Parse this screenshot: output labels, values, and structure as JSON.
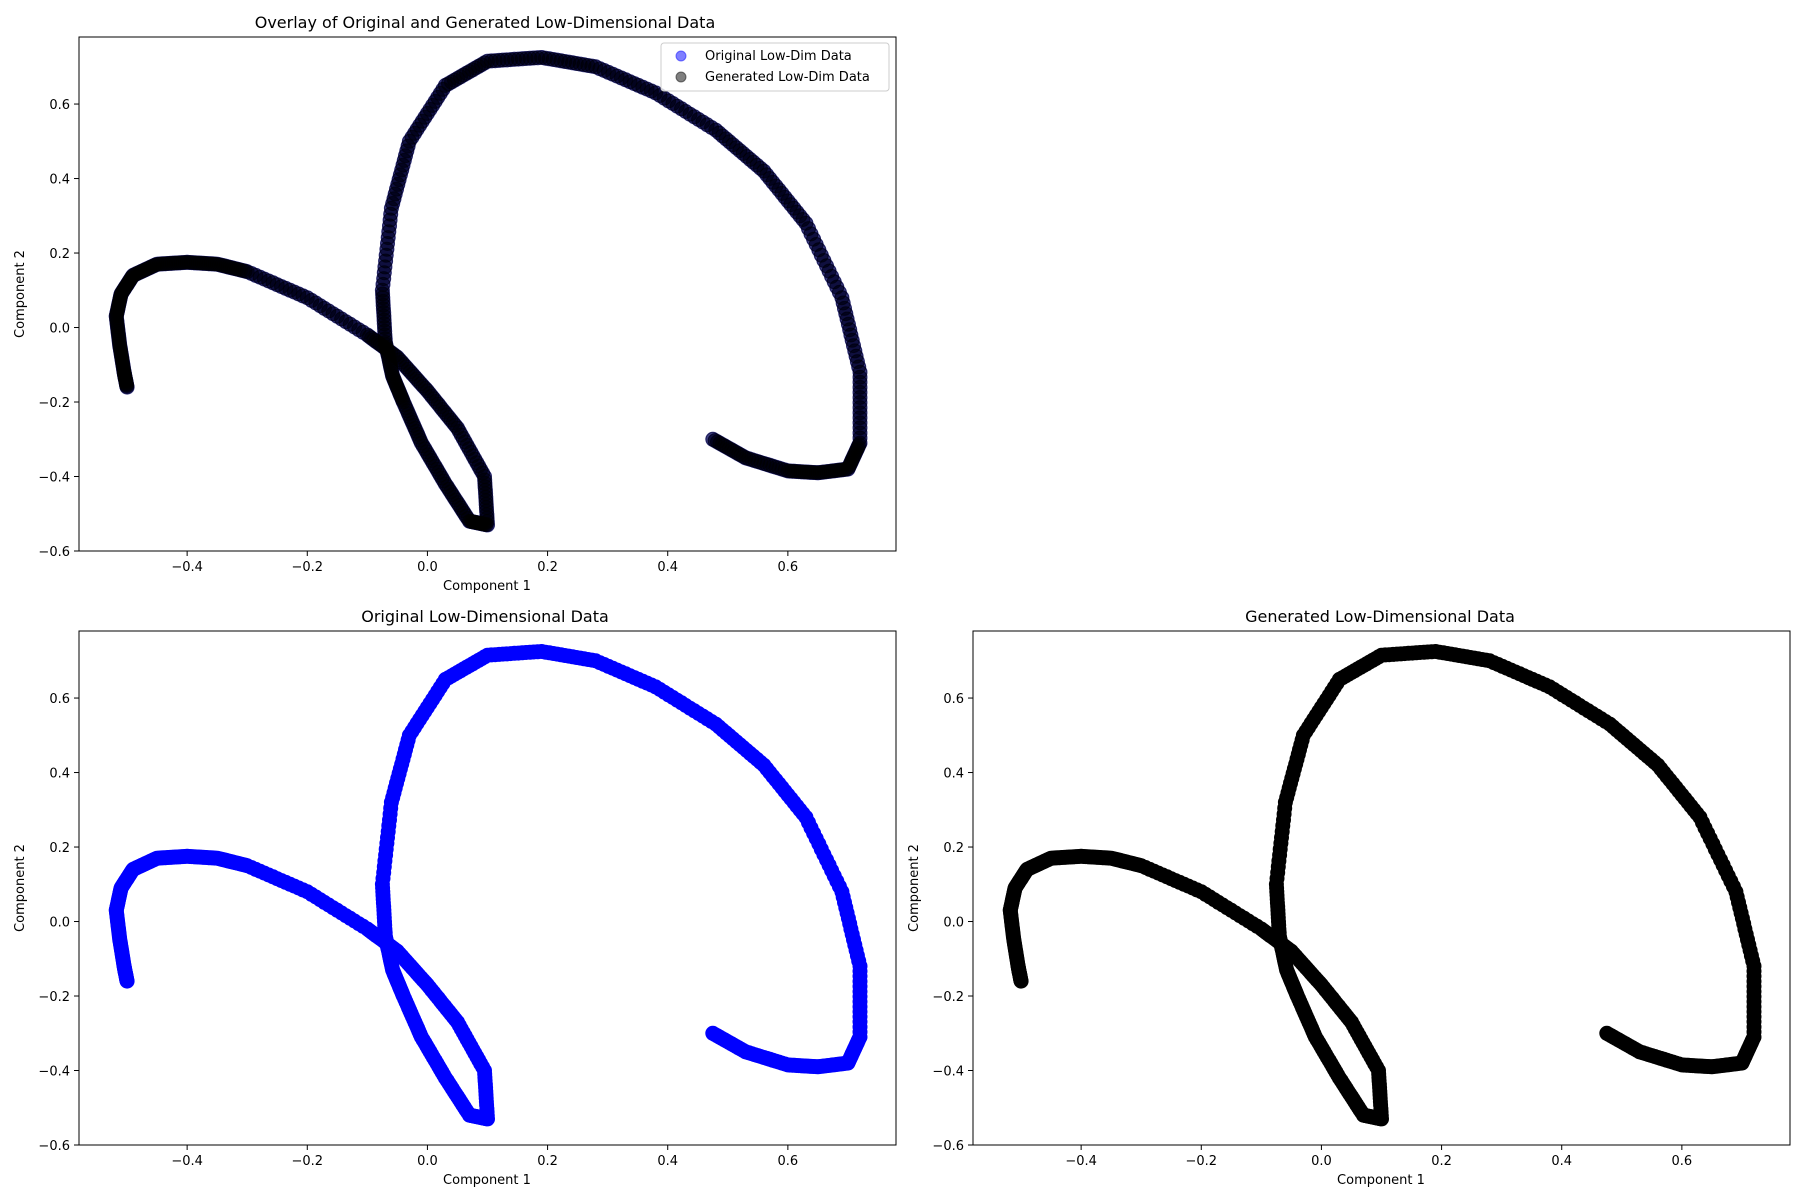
{
  "figure": {
    "background": "#ffffff"
  },
  "chart_data": [
    {
      "type": "scatter",
      "id": "overlay",
      "title": "Overlay of Original and Generated Low-Dimensional Data",
      "xlabel": "Component 1",
      "ylabel": "Component 2",
      "xlim": [
        -0.58,
        0.78
      ],
      "ylim": [
        -0.6,
        0.78
      ],
      "xticks": [
        -0.4,
        -0.2,
        0.0,
        0.2,
        0.4,
        0.6
      ],
      "xtick_labels": [
        "−0.4",
        "−0.2",
        "0.0",
        "0.2",
        "0.4",
        "0.6"
      ],
      "yticks": [
        -0.6,
        -0.4,
        -0.2,
        0.0,
        0.2,
        0.4,
        0.6
      ],
      "ytick_labels": [
        "−0.6",
        "−0.4",
        "−0.2",
        "0.0",
        "0.2",
        "0.4",
        "0.6"
      ],
      "grid": false,
      "legend": {
        "position": "upper right",
        "entries": [
          {
            "label": "Original Low-Dim Data",
            "color": "#0000ff",
            "alpha": 0.5
          },
          {
            "label": "Generated Low-Dim Data",
            "color": "#000000",
            "alpha": 0.5
          }
        ]
      },
      "series": [
        {
          "name": "Original Low-Dim Data",
          "color": "#0000ff",
          "alpha": 0.5,
          "x": [
            -0.5,
            -0.505,
            -0.512,
            -0.518,
            -0.51,
            -0.49,
            -0.45,
            -0.4,
            -0.35,
            -0.3,
            -0.2,
            -0.1,
            -0.05,
            0.0,
            0.05,
            0.095,
            0.1,
            0.07,
            0.03,
            -0.01,
            -0.04,
            -0.058,
            -0.07,
            -0.075,
            -0.06,
            -0.03,
            0.03,
            0.1,
            0.19,
            0.28,
            0.38,
            0.48,
            0.56,
            0.63,
            0.69,
            0.72,
            0.72,
            0.7,
            0.65,
            0.6,
            0.53,
            0.475
          ],
          "y": [
            -0.16,
            -0.12,
            -0.05,
            0.03,
            0.09,
            0.14,
            0.17,
            0.175,
            0.17,
            0.15,
            0.08,
            -0.02,
            -0.08,
            -0.17,
            -0.27,
            -0.4,
            -0.53,
            -0.52,
            -0.42,
            -0.31,
            -0.2,
            -0.13,
            -0.04,
            0.1,
            0.32,
            0.5,
            0.65,
            0.715,
            0.725,
            0.7,
            0.63,
            0.53,
            0.42,
            0.28,
            0.08,
            -0.12,
            -0.31,
            -0.38,
            -0.39,
            -0.385,
            -0.35,
            -0.3
          ]
        },
        {
          "name": "Generated Low-Dim Data",
          "color": "#000000",
          "alpha": 0.5,
          "x": [
            -0.5,
            -0.505,
            -0.512,
            -0.518,
            -0.51,
            -0.49,
            -0.45,
            -0.4,
            -0.35,
            -0.3,
            -0.2,
            -0.1,
            -0.05,
            0.0,
            0.05,
            0.095,
            0.1,
            0.07,
            0.03,
            -0.01,
            -0.04,
            -0.058,
            -0.07,
            -0.075,
            -0.06,
            -0.03,
            0.03,
            0.1,
            0.19,
            0.28,
            0.38,
            0.48,
            0.56,
            0.63,
            0.69,
            0.72,
            0.72,
            0.7,
            0.65,
            0.6,
            0.53,
            0.475
          ],
          "y": [
            -0.16,
            -0.12,
            -0.05,
            0.03,
            0.09,
            0.14,
            0.17,
            0.175,
            0.17,
            0.15,
            0.08,
            -0.02,
            -0.08,
            -0.17,
            -0.27,
            -0.4,
            -0.53,
            -0.52,
            -0.42,
            -0.31,
            -0.2,
            -0.13,
            -0.04,
            0.1,
            0.32,
            0.5,
            0.65,
            0.715,
            0.725,
            0.7,
            0.63,
            0.53,
            0.42,
            0.28,
            0.08,
            -0.12,
            -0.31,
            -0.38,
            -0.39,
            -0.385,
            -0.35,
            -0.3
          ]
        }
      ]
    },
    {
      "type": "scatter",
      "id": "original",
      "title": "Original Low-Dimensional Data",
      "xlabel": "Component 1",
      "ylabel": "Component 2",
      "xlim": [
        -0.58,
        0.78
      ],
      "ylim": [
        -0.6,
        0.78
      ],
      "xticks": [
        -0.4,
        -0.2,
        0.0,
        0.2,
        0.4,
        0.6
      ],
      "xtick_labels": [
        "−0.4",
        "−0.2",
        "0.0",
        "0.2",
        "0.4",
        "0.6"
      ],
      "yticks": [
        -0.6,
        -0.4,
        -0.2,
        0.0,
        0.2,
        0.4,
        0.6
      ],
      "ytick_labels": [
        "−0.6",
        "−0.4",
        "−0.2",
        "0.0",
        "0.2",
        "0.4",
        "0.6"
      ],
      "grid": false,
      "series": [
        {
          "color": "#0000ff",
          "alpha": 1.0,
          "x": [
            -0.5,
            -0.505,
            -0.512,
            -0.518,
            -0.51,
            -0.49,
            -0.45,
            -0.4,
            -0.35,
            -0.3,
            -0.2,
            -0.1,
            -0.05,
            0.0,
            0.05,
            0.095,
            0.1,
            0.07,
            0.03,
            -0.01,
            -0.04,
            -0.058,
            -0.07,
            -0.075,
            -0.06,
            -0.03,
            0.03,
            0.1,
            0.19,
            0.28,
            0.38,
            0.48,
            0.56,
            0.63,
            0.69,
            0.72,
            0.72,
            0.7,
            0.65,
            0.6,
            0.53,
            0.475
          ],
          "y": [
            -0.16,
            -0.12,
            -0.05,
            0.03,
            0.09,
            0.14,
            0.17,
            0.175,
            0.17,
            0.15,
            0.08,
            -0.02,
            -0.08,
            -0.17,
            -0.27,
            -0.4,
            -0.53,
            -0.52,
            -0.42,
            -0.31,
            -0.2,
            -0.13,
            -0.04,
            0.1,
            0.32,
            0.5,
            0.65,
            0.715,
            0.725,
            0.7,
            0.63,
            0.53,
            0.42,
            0.28,
            0.08,
            -0.12,
            -0.31,
            -0.38,
            -0.39,
            -0.385,
            -0.35,
            -0.3
          ]
        }
      ]
    },
    {
      "type": "scatter",
      "id": "generated",
      "title": "Generated Low-Dimensional Data",
      "xlabel": "Component 1",
      "ylabel": "Component 2",
      "xlim": [
        -0.58,
        0.78
      ],
      "ylim": [
        -0.6,
        0.78
      ],
      "xticks": [
        -0.4,
        -0.2,
        0.0,
        0.2,
        0.4,
        0.6
      ],
      "xtick_labels": [
        "−0.4",
        "−0.2",
        "0.0",
        "0.2",
        "0.4",
        "0.6"
      ],
      "yticks": [
        -0.6,
        -0.4,
        -0.2,
        0.0,
        0.2,
        0.4,
        0.6
      ],
      "ytick_labels": [
        "−0.6",
        "−0.4",
        "−0.2",
        "0.0",
        "0.2",
        "0.4",
        "0.6"
      ],
      "grid": false,
      "series": [
        {
          "color": "#000000",
          "alpha": 1.0,
          "x": [
            -0.5,
            -0.505,
            -0.512,
            -0.518,
            -0.51,
            -0.49,
            -0.45,
            -0.4,
            -0.35,
            -0.3,
            -0.2,
            -0.1,
            -0.05,
            0.0,
            0.05,
            0.095,
            0.1,
            0.07,
            0.03,
            -0.01,
            -0.04,
            -0.058,
            -0.07,
            -0.075,
            -0.06,
            -0.03,
            0.03,
            0.1,
            0.19,
            0.28,
            0.38,
            0.48,
            0.56,
            0.63,
            0.69,
            0.72,
            0.72,
            0.7,
            0.65,
            0.6,
            0.53,
            0.475
          ],
          "y": [
            -0.16,
            -0.12,
            -0.05,
            0.03,
            0.09,
            0.14,
            0.17,
            0.175,
            0.17,
            0.15,
            0.08,
            -0.02,
            -0.08,
            -0.17,
            -0.27,
            -0.4,
            -0.53,
            -0.52,
            -0.42,
            -0.31,
            -0.2,
            -0.13,
            -0.04,
            0.1,
            0.32,
            0.5,
            0.65,
            0.715,
            0.725,
            0.7,
            0.63,
            0.53,
            0.42,
            0.28,
            0.08,
            -0.12,
            -0.31,
            -0.38,
            -0.39,
            -0.385,
            -0.35,
            -0.3
          ]
        }
      ]
    }
  ]
}
